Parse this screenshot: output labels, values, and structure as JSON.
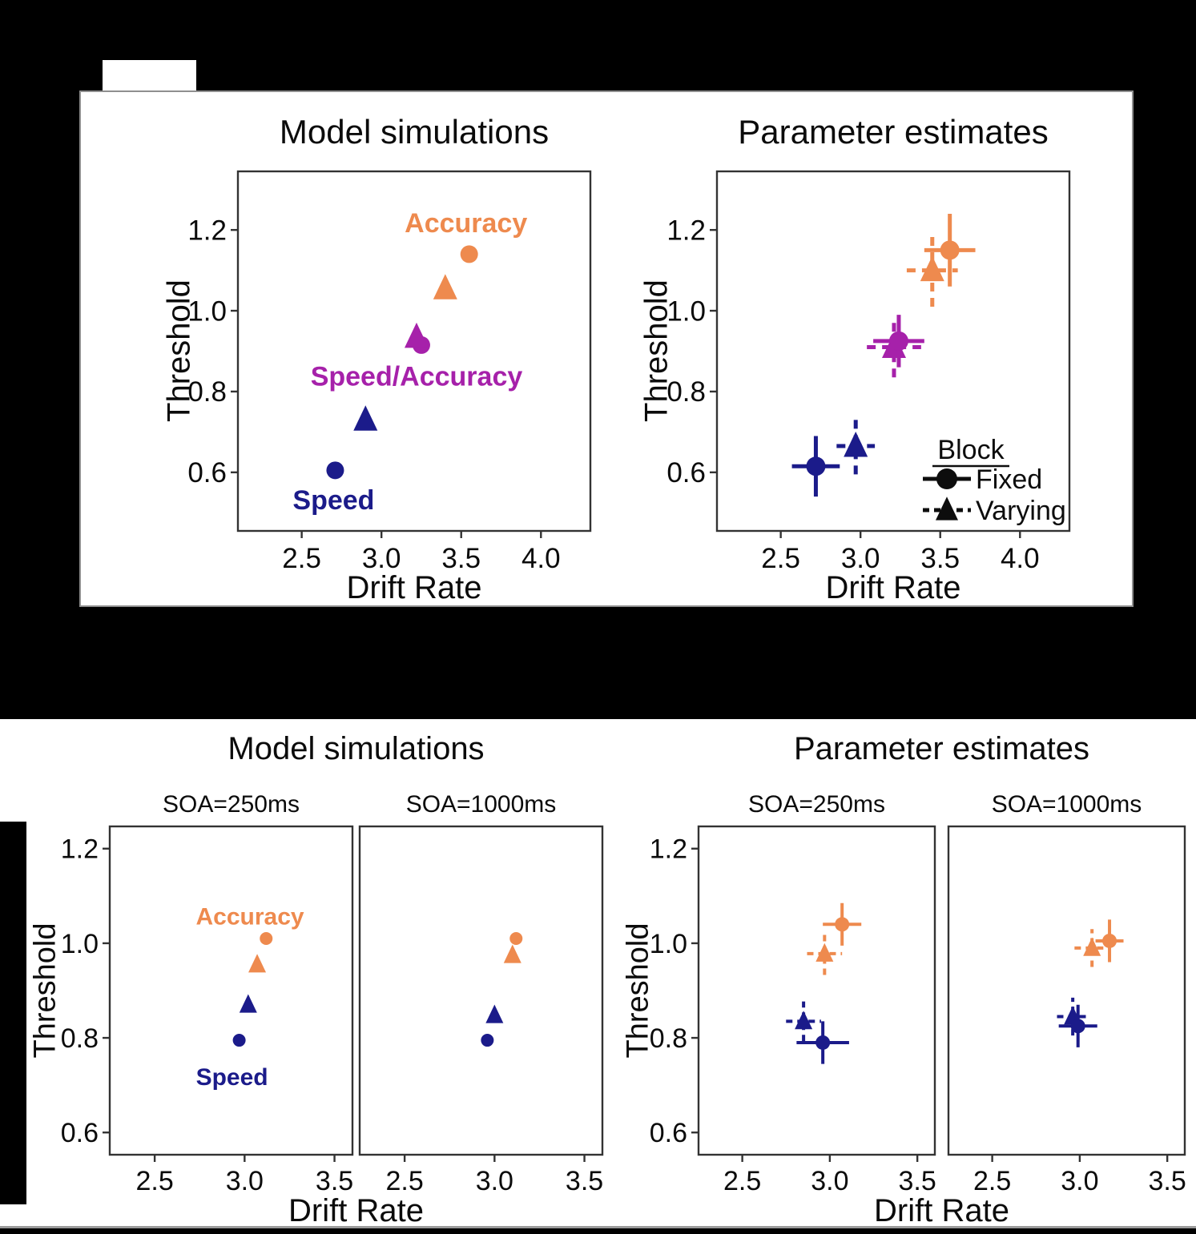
{
  "colors": {
    "background": "#000000",
    "panel_bg": "#ffffff",
    "axis": "#333333",
    "text": "#0b0b0b",
    "accuracy_orange": "#ee8a4e",
    "speed_blue": "#1b1b8a",
    "speed_accuracy_magenta": "#a621aa",
    "legend_black": "#0d0d0d"
  },
  "panel_a": {
    "sim_title": "Model simulations",
    "est_title": "Parameter estimates",
    "xlabel": "Drift Rate",
    "ylabel": "Threshold"
  },
  "panel_b": {
    "sim_title": "Model simulations",
    "est_title": "Parameter estimates",
    "facet_labels": [
      "SOA=250ms",
      "SOA=1000ms"
    ],
    "xlabel": "Drift Rate",
    "ylabel": "Threshold"
  },
  "chart_data": [
    {
      "id": "a_sim",
      "type": "scatter",
      "title": "Model simulations",
      "xlabel": "Drift Rate",
      "ylabel": "Threshold",
      "xlim": [
        2.1,
        4.31
      ],
      "ylim": [
        0.455,
        1.345
      ],
      "xticks": [
        2.5,
        3.0,
        3.5,
        4.0
      ],
      "yticks": [
        0.6,
        0.8,
        1.0,
        1.2
      ],
      "series": [
        {
          "name": "Speed Fixed",
          "marker": "circle",
          "color_key": "speed_blue",
          "points": [
            {
              "x": 2.71,
              "y": 0.605
            }
          ]
        },
        {
          "name": "Speed Varying",
          "marker": "triangle",
          "color_key": "speed_blue",
          "points": [
            {
              "x": 2.9,
              "y": 0.73
            }
          ]
        },
        {
          "name": "Speed Accuracy Fixed",
          "marker": "circle",
          "color_key": "speed_accuracy_magenta",
          "points": [
            {
              "x": 3.25,
              "y": 0.915
            }
          ]
        },
        {
          "name": "Speed Accuracy Varying",
          "marker": "triangle",
          "color_key": "speed_accuracy_magenta",
          "points": [
            {
              "x": 3.22,
              "y": 0.935
            }
          ]
        },
        {
          "name": "Accuracy Varying",
          "marker": "triangle",
          "color_key": "accuracy_orange",
          "points": [
            {
              "x": 3.4,
              "y": 1.055
            }
          ]
        },
        {
          "name": "Accuracy Fixed",
          "marker": "circle",
          "color_key": "accuracy_orange",
          "points": [
            {
              "x": 3.55,
              "y": 1.14
            }
          ]
        }
      ],
      "annotations": [
        {
          "text": "Accuracy",
          "x": 3.53,
          "y": 1.218,
          "color_key": "accuracy_orange"
        },
        {
          "text": "Speed/Accuracy",
          "x": 3.22,
          "y": 0.838,
          "color_key": "speed_accuracy_magenta"
        },
        {
          "text": "Speed",
          "x": 2.7,
          "y": 0.532,
          "color_key": "speed_blue"
        }
      ]
    },
    {
      "id": "a_est",
      "type": "scatter",
      "title": "Parameter estimates",
      "xlabel": "Drift Rate",
      "ylabel": "Threshold",
      "xlim": [
        2.1,
        4.31
      ],
      "ylim": [
        0.455,
        1.345
      ],
      "xticks": [
        2.5,
        3.0,
        3.5,
        4.0
      ],
      "yticks": [
        0.6,
        0.8,
        1.0,
        1.2
      ],
      "series": [
        {
          "name": "Speed Fixed",
          "marker": "circle",
          "color_key": "speed_blue",
          "linestyle": "solid",
          "points": [
            {
              "x": 2.72,
              "y": 0.615,
              "xerr": 0.15,
              "yerr": 0.075
            }
          ]
        },
        {
          "name": "Speed Varying",
          "marker": "triangle",
          "color_key": "speed_blue",
          "linestyle": "dashed",
          "points": [
            {
              "x": 2.97,
              "y": 0.665,
              "xerr": 0.12,
              "yerr": 0.07
            }
          ]
        },
        {
          "name": "Speed Accuracy Varying",
          "marker": "triangle",
          "color_key": "speed_accuracy_magenta",
          "linestyle": "dashed",
          "points": [
            {
              "x": 3.21,
              "y": 0.91,
              "xerr": 0.17,
              "yerr": 0.075
            }
          ]
        },
        {
          "name": "Speed Accuracy Fixed",
          "marker": "circle",
          "color_key": "speed_accuracy_magenta",
          "linestyle": "solid",
          "points": [
            {
              "x": 3.24,
              "y": 0.925,
              "xerr": 0.16,
              "yerr": 0.065
            }
          ]
        },
        {
          "name": "Accuracy Varying",
          "marker": "triangle",
          "color_key": "accuracy_orange",
          "linestyle": "dashed",
          "points": [
            {
              "x": 3.45,
              "y": 1.1,
              "xerr": 0.16,
              "yerr": 0.09
            }
          ]
        },
        {
          "name": "Accuracy Fixed",
          "marker": "circle",
          "color_key": "accuracy_orange",
          "linestyle": "solid",
          "points": [
            {
              "x": 3.56,
              "y": 1.15,
              "xerr": 0.16,
              "yerr": 0.09
            }
          ]
        }
      ],
      "legend": {
        "title": "Block",
        "items": [
          {
            "label": "Fixed",
            "marker": "circle",
            "linestyle": "solid"
          },
          {
            "label": "Varying",
            "marker": "triangle",
            "linestyle": "dashed"
          }
        ],
        "position": "lower right"
      }
    },
    {
      "id": "b_sim_250",
      "type": "scatter",
      "facet": "SOA=250ms",
      "group_title": "Model simulations",
      "xlabel": "Drift Rate",
      "ylabel": "Threshold",
      "xlim": [
        2.25,
        3.6
      ],
      "ylim": [
        0.553,
        1.247
      ],
      "xticks": [
        2.5,
        3.0,
        3.5
      ],
      "yticks": [
        0.6,
        0.8,
        1.0,
        1.2
      ],
      "series": [
        {
          "name": "Accuracy Fixed",
          "marker": "circle",
          "color_key": "accuracy_orange",
          "points": [
            {
              "x": 3.12,
              "y": 1.01
            }
          ]
        },
        {
          "name": "Accuracy Varying",
          "marker": "triangle",
          "color_key": "accuracy_orange",
          "points": [
            {
              "x": 3.07,
              "y": 0.955
            }
          ]
        },
        {
          "name": "Speed Varying",
          "marker": "triangle",
          "color_key": "speed_blue",
          "points": [
            {
              "x": 3.02,
              "y": 0.87
            }
          ]
        },
        {
          "name": "Speed Fixed",
          "marker": "circle",
          "color_key": "speed_blue",
          "points": [
            {
              "x": 2.97,
              "y": 0.795
            }
          ]
        }
      ],
      "annotations": [
        {
          "text": "Accuracy",
          "x": 3.03,
          "y": 1.057,
          "color_key": "accuracy_orange"
        },
        {
          "text": "Speed",
          "x": 2.93,
          "y": 0.718,
          "color_key": "speed_blue"
        }
      ]
    },
    {
      "id": "b_sim_1000",
      "type": "scatter",
      "facet": "SOA=1000ms",
      "group_title": "Model simulations",
      "xlabel": "Drift Rate",
      "ylabel": "Threshold",
      "xlim": [
        2.25,
        3.6
      ],
      "ylim": [
        0.553,
        1.247
      ],
      "xticks": [
        2.5,
        3.0,
        3.5
      ],
      "yticks": [
        0.6,
        0.8,
        1.0,
        1.2
      ],
      "series": [
        {
          "name": "Accuracy Fixed",
          "marker": "circle",
          "color_key": "accuracy_orange",
          "points": [
            {
              "x": 3.12,
              "y": 1.01
            }
          ]
        },
        {
          "name": "Accuracy Varying",
          "marker": "triangle",
          "color_key": "accuracy_orange",
          "points": [
            {
              "x": 3.1,
              "y": 0.975
            }
          ]
        },
        {
          "name": "Speed Varying",
          "marker": "triangle",
          "color_key": "speed_blue",
          "points": [
            {
              "x": 3.0,
              "y": 0.848
            }
          ]
        },
        {
          "name": "Speed Fixed",
          "marker": "circle",
          "color_key": "speed_blue",
          "points": [
            {
              "x": 2.96,
              "y": 0.795
            }
          ]
        }
      ]
    },
    {
      "id": "b_est_250",
      "type": "scatter",
      "facet": "SOA=250ms",
      "group_title": "Parameter estimates",
      "xlabel": "Drift Rate",
      "ylabel": "Threshold",
      "xlim": [
        2.25,
        3.6
      ],
      "ylim": [
        0.553,
        1.247
      ],
      "xticks": [
        2.5,
        3.0,
        3.5
      ],
      "yticks": [
        0.6,
        0.8,
        1.0,
        1.2
      ],
      "series": [
        {
          "name": "Accuracy Fixed",
          "marker": "circle",
          "color_key": "accuracy_orange",
          "linestyle": "solid",
          "points": [
            {
              "x": 3.07,
              "y": 1.04,
              "xerr": 0.11,
              "yerr": 0.045
            }
          ]
        },
        {
          "name": "Accuracy Varying",
          "marker": "triangle",
          "color_key": "accuracy_orange",
          "linestyle": "dashed",
          "points": [
            {
              "x": 2.97,
              "y": 0.978,
              "xerr": 0.1,
              "yerr": 0.045
            }
          ]
        },
        {
          "name": "Speed Varying",
          "marker": "triangle",
          "color_key": "speed_blue",
          "linestyle": "dashed",
          "points": [
            {
              "x": 2.85,
              "y": 0.835,
              "xerr": 0.1,
              "yerr": 0.042
            }
          ]
        },
        {
          "name": "Speed Fixed",
          "marker": "circle",
          "color_key": "speed_blue",
          "linestyle": "solid",
          "points": [
            {
              "x": 2.96,
              "y": 0.79,
              "xerr": 0.15,
              "yerr": 0.045
            }
          ]
        }
      ]
    },
    {
      "id": "b_est_1000",
      "type": "scatter",
      "facet": "SOA=1000ms",
      "group_title": "Parameter estimates",
      "xlabel": "Drift Rate",
      "ylabel": "Threshold",
      "xlim": [
        2.25,
        3.6
      ],
      "ylim": [
        0.553,
        1.247
      ],
      "xticks": [
        2.5,
        3.0,
        3.5
      ],
      "yticks": [
        0.6,
        0.8,
        1.0,
        1.2
      ],
      "series": [
        {
          "name": "Accuracy Fixed",
          "marker": "circle",
          "color_key": "accuracy_orange",
          "linestyle": "solid",
          "points": [
            {
              "x": 3.17,
              "y": 1.005,
              "xerr": 0.08,
              "yerr": 0.045
            }
          ]
        },
        {
          "name": "Accuracy Varying",
          "marker": "triangle",
          "color_key": "accuracy_orange",
          "linestyle": "dashed",
          "points": [
            {
              "x": 3.07,
              "y": 0.99,
              "xerr": 0.1,
              "yerr": 0.04
            }
          ]
        },
        {
          "name": "Speed Varying",
          "marker": "triangle",
          "color_key": "speed_blue",
          "linestyle": "dashed",
          "points": [
            {
              "x": 2.96,
              "y": 0.845,
              "xerr": 0.09,
              "yerr": 0.04
            }
          ]
        },
        {
          "name": "Speed Fixed",
          "marker": "circle",
          "color_key": "speed_blue",
          "linestyle": "solid",
          "points": [
            {
              "x": 2.99,
              "y": 0.825,
              "xerr": 0.11,
              "yerr": 0.045
            }
          ]
        }
      ]
    }
  ]
}
